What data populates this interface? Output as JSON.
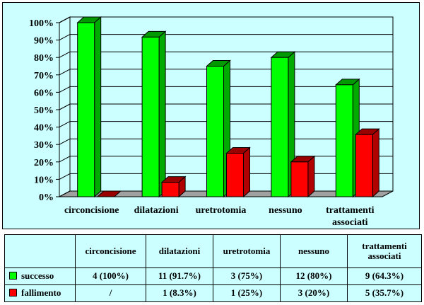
{
  "chart_data": {
    "type": "bar",
    "categories": [
      "circoncisione",
      "dilatazioni",
      "uretrotomia",
      "nessuno",
      "trattamenti associati"
    ],
    "series": [
      {
        "name": "successo",
        "color": "#00ff00",
        "values": [
          100,
          91.7,
          75,
          80,
          64.3
        ]
      },
      {
        "name": "fallimento",
        "color": "#ff0000",
        "values": [
          0,
          8.3,
          25,
          20,
          35.7
        ]
      }
    ],
    "yticks": [
      "0%",
      "10%",
      "20%",
      "30%",
      "40%",
      "50%",
      "60%",
      "70%",
      "80%",
      "90%",
      "100%"
    ],
    "ylim": [
      0,
      100
    ],
    "grid": true
  },
  "table": {
    "headers": [
      "circoncisione",
      "dilatazioni",
      "uretrotomia",
      "nessuno",
      "trattamenti associati"
    ],
    "rows": [
      {
        "label": "successo",
        "color": "#00ff00",
        "cells": [
          "4 (100%)",
          "11 (91.7%)",
          "3 (75%)",
          "12 (80%)",
          "9 (64.3%)"
        ]
      },
      {
        "label": "fallimento",
        "color": "#ff0000",
        "cells": [
          "/",
          "1 (8.3%)",
          "1 (25%)",
          "3 (20%)",
          "5 (35.7%)"
        ]
      }
    ]
  }
}
